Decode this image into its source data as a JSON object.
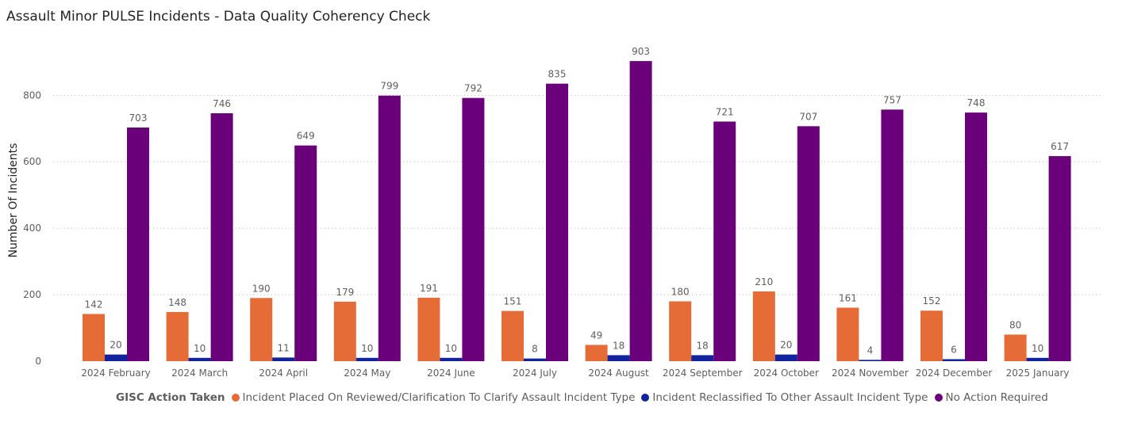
{
  "chart_data": {
    "type": "bar",
    "title": "Assault Minor PULSE Incidents - Data Quality Coherency Check",
    "xlabel": "",
    "ylabel": "Number Of Incidents",
    "ylim": [
      0,
      950
    ],
    "yticks": [
      0,
      200,
      400,
      600,
      800
    ],
    "grid": true,
    "legend_title": "GISC Action Taken",
    "legend_position": "bottom",
    "categories": [
      "2024 February",
      "2024 March",
      "2024 April",
      "2024 May",
      "2024 June",
      "2024 July",
      "2024 August",
      "2024 September",
      "2024 October",
      "2024 November",
      "2024 December",
      "2025 January"
    ],
    "series": [
      {
        "name": "Incident Placed On Reviewed/Clarification To Clarify Assault Incident Type",
        "color": "#E66C37",
        "values": [
          142,
          148,
          190,
          179,
          191,
          151,
          49,
          180,
          210,
          161,
          152,
          80
        ]
      },
      {
        "name": "Incident Reclassified To Other Assault Incident Type",
        "color": "#12239E",
        "values": [
          20,
          10,
          11,
          10,
          10,
          8,
          18,
          18,
          20,
          4,
          6,
          10
        ]
      },
      {
        "name": "No Action Required",
        "color": "#6B007B",
        "values": [
          703,
          746,
          649,
          799,
          792,
          835,
          903,
          721,
          707,
          757,
          748,
          617
        ]
      }
    ]
  }
}
